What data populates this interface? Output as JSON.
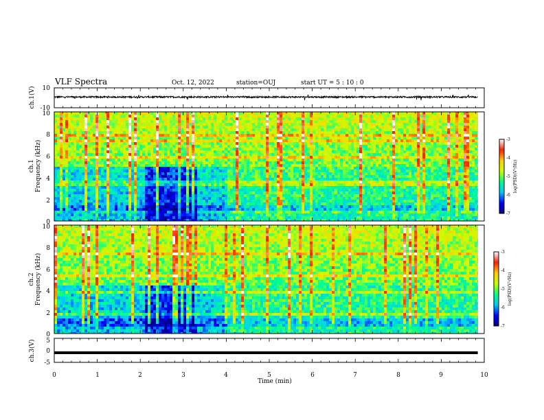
{
  "header": {
    "title": "VLF Spectra",
    "date": "Oct. 12, 2022",
    "station": "station=OUJ",
    "start": "start  UT =   5  : 10 : 0"
  },
  "chart_data": [
    {
      "type": "line",
      "ylabel": "ch.1(V)",
      "ylim": [
        -10,
        10
      ],
      "yticks": [
        "10",
        "-10"
      ],
      "x_range_min": [
        0,
        9.85
      ],
      "level": 0.8,
      "grid": false
    },
    {
      "type": "heatmap",
      "ylabel_line1": "ch.1",
      "ylabel_line2": "Frequency  (kHz)",
      "ylim": [
        0,
        10
      ],
      "yticks": [
        "0",
        "2",
        "4",
        "6",
        "8",
        "10"
      ],
      "x_range_min": [
        0,
        9.85
      ],
      "colorbar": {
        "label": "log(PSD)(V²/Hz)",
        "range": [
          -7,
          -3
        ],
        "ticks": [
          "-3",
          "-4",
          "-5",
          "-6",
          "-7"
        ],
        "colors": [
          "#00007a",
          "#0000ff",
          "#00c8ff",
          "#00ff90",
          "#c8ff00",
          "#ffd000",
          "#ff2000",
          "#ffffff"
        ]
      },
      "quiet_band_khz": [
        0,
        5
      ],
      "quiet_interval_min": [
        2.05,
        3.3
      ]
    },
    {
      "type": "heatmap",
      "ylabel_line1": "ch.2",
      "ylabel_line2": "Frequency  (kHz)",
      "ylim": [
        0,
        10
      ],
      "yticks": [
        "0",
        "2",
        "4",
        "6",
        "8",
        "10"
      ],
      "x_range_min": [
        0,
        9.85
      ],
      "colorbar": {
        "label": "log(PSD)(V²/Hz)",
        "range": [
          -7,
          -3
        ],
        "ticks": [
          "-3",
          "-4",
          "-5",
          "-6",
          "-7"
        ],
        "colors": [
          "#00007a",
          "#0000ff",
          "#00c8ff",
          "#00ff90",
          "#c8ff00",
          "#ffd000",
          "#ff2000",
          "#ffffff"
        ]
      },
      "quiet_band_khz": [
        0,
        4.5
      ],
      "quiet_interval_min": [
        2.05,
        3.3
      ]
    },
    {
      "type": "line",
      "ylabel": "ch.3(V)",
      "ylim": [
        -5,
        5
      ],
      "yticks": [
        "5",
        "0",
        "-5"
      ],
      "x_range_min": [
        0,
        9.85
      ],
      "level": -1.0,
      "grid": false
    }
  ],
  "xaxis": {
    "label": "Time  (min)",
    "range": [
      0,
      10
    ],
    "ticks": [
      "0",
      "1",
      "2",
      "3",
      "4",
      "5",
      "6",
      "7",
      "8",
      "9",
      "10"
    ]
  }
}
